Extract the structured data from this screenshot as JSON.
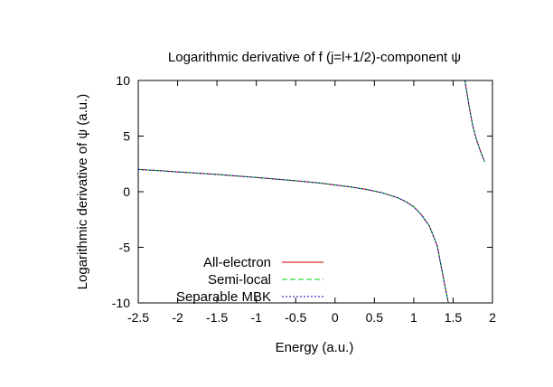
{
  "chart_data": {
    "type": "line",
    "title": "Logarithmic derivative of f (j=l+1/2)-component ψ",
    "xlabel": "Energy (a.u.)",
    "ylabel": "Logarithmic derivative of ψ (a.u.)",
    "xlim": [
      -2.5,
      2
    ],
    "ylim": [
      -10,
      10
    ],
    "xticks": [
      "-2.5",
      "-2",
      "-1.5",
      "-1",
      "-0.5",
      "0",
      "0.5",
      "1",
      "1.5",
      "2"
    ],
    "yticks": [
      "-10",
      "-5",
      "0",
      "5",
      "10"
    ],
    "grid": false,
    "legend_position": "bottom-left",
    "series": [
      {
        "name": "All-electron",
        "color": "#cc0000",
        "segments": [
          [
            [
              -2.5,
              2.0
            ],
            [
              -2.2,
              1.88
            ],
            [
              -2.0,
              1.78
            ],
            [
              -1.5,
              1.55
            ],
            [
              -1.0,
              1.28
            ],
            [
              -0.5,
              0.98
            ],
            [
              -0.2,
              0.78
            ],
            [
              0.0,
              0.6
            ],
            [
              0.2,
              0.42
            ],
            [
              0.4,
              0.2
            ],
            [
              0.6,
              -0.1
            ],
            [
              0.8,
              -0.55
            ],
            [
              0.9,
              -0.9
            ],
            [
              1.0,
              -1.35
            ],
            [
              1.1,
              -2.1
            ],
            [
              1.2,
              -3.1
            ],
            [
              1.3,
              -4.9
            ],
            [
              1.35,
              -6.8
            ],
            [
              1.4,
              -8.6
            ],
            [
              1.44,
              -10.0
            ]
          ],
          [
            [
              1.65,
              10.0
            ],
            [
              1.7,
              7.8
            ],
            [
              1.75,
              5.9
            ],
            [
              1.8,
              4.6
            ],
            [
              1.85,
              3.6
            ],
            [
              1.9,
              2.7
            ]
          ]
        ]
      },
      {
        "name": "Semi-local",
        "color": "#00cc00",
        "segments": [
          [
            [
              -2.5,
              2.0
            ],
            [
              -2.2,
              1.88
            ],
            [
              -2.0,
              1.78
            ],
            [
              -1.5,
              1.55
            ],
            [
              -1.0,
              1.28
            ],
            [
              -0.5,
              0.98
            ],
            [
              -0.2,
              0.78
            ],
            [
              0.0,
              0.6
            ],
            [
              0.2,
              0.42
            ],
            [
              0.4,
              0.2
            ],
            [
              0.6,
              -0.1
            ],
            [
              0.8,
              -0.55
            ],
            [
              0.9,
              -0.9
            ],
            [
              1.0,
              -1.35
            ],
            [
              1.1,
              -2.1
            ],
            [
              1.2,
              -3.1
            ],
            [
              1.3,
              -4.9
            ],
            [
              1.35,
              -6.8
            ],
            [
              1.4,
              -8.6
            ],
            [
              1.44,
              -10.0
            ]
          ],
          [
            [
              1.65,
              10.0
            ],
            [
              1.7,
              7.8
            ],
            [
              1.75,
              5.9
            ],
            [
              1.8,
              4.6
            ],
            [
              1.85,
              3.6
            ],
            [
              1.9,
              2.7
            ]
          ]
        ]
      },
      {
        "name": "Separable MBK",
        "color": "#0000cc",
        "segments": [
          [
            [
              -2.5,
              2.0
            ],
            [
              -2.2,
              1.88
            ],
            [
              -2.0,
              1.78
            ],
            [
              -1.5,
              1.55
            ],
            [
              -1.0,
              1.28
            ],
            [
              -0.5,
              0.98
            ],
            [
              -0.2,
              0.78
            ],
            [
              0.0,
              0.6
            ],
            [
              0.2,
              0.42
            ],
            [
              0.4,
              0.2
            ],
            [
              0.6,
              -0.1
            ],
            [
              0.8,
              -0.55
            ],
            [
              0.9,
              -0.9
            ],
            [
              1.0,
              -1.35
            ],
            [
              1.1,
              -2.1
            ],
            [
              1.2,
              -3.1
            ],
            [
              1.3,
              -4.9
            ],
            [
              1.35,
              -6.8
            ],
            [
              1.4,
              -8.6
            ],
            [
              1.44,
              -10.0
            ]
          ],
          [
            [
              1.65,
              10.0
            ],
            [
              1.7,
              7.8
            ],
            [
              1.75,
              5.9
            ],
            [
              1.8,
              4.6
            ],
            [
              1.85,
              3.6
            ],
            [
              1.9,
              2.7
            ]
          ]
        ]
      }
    ]
  }
}
